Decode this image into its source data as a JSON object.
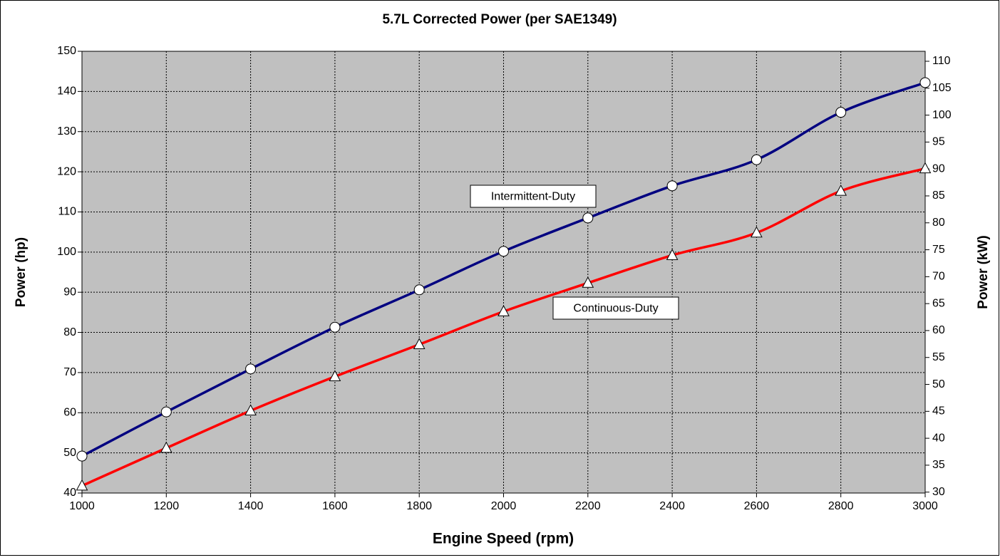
{
  "chart_data": {
    "type": "line",
    "title": "5.7L Corrected Power (per SAE1349)",
    "x_label": "Engine Speed (rpm)",
    "y_label": "Power (hp)",
    "y2_label": "Power (kW)",
    "x": [
      1000,
      1200,
      1400,
      1600,
      1800,
      2000,
      2200,
      2400,
      2600,
      2800,
      3000
    ],
    "series": [
      {
        "name": "Intermittent-Duty",
        "color": "#000080",
        "marker": "circle",
        "values": [
          49.2,
          60.2,
          70.9,
          81.3,
          90.6,
          100.2,
          108.5,
          116.5,
          123,
          134.8,
          142.2
        ]
      },
      {
        "name": "Continuous-Duty",
        "color": "#ff0000",
        "marker": "triangle",
        "values": [
          41.8,
          51.2,
          60.5,
          69,
          77,
          85.2,
          92.3,
          99.2,
          104.8,
          115.2,
          120.8
        ]
      }
    ],
    "xlim": [
      1000,
      3000
    ],
    "xticks": [
      1000,
      1200,
      1400,
      1600,
      1800,
      2000,
      2200,
      2400,
      2600,
      2800,
      3000
    ],
    "ylim": [
      40,
      150
    ],
    "yticks": [
      40,
      50,
      60,
      70,
      80,
      90,
      100,
      110,
      120,
      130,
      140,
      150
    ],
    "y2lim": [
      29.83,
      111.85
    ],
    "y2ticks": [
      30,
      35,
      40,
      45,
      50,
      55,
      60,
      65,
      70,
      75,
      80,
      85,
      90,
      95,
      100,
      105,
      110
    ],
    "grid": true,
    "plot_background": "#c0c0c0"
  }
}
